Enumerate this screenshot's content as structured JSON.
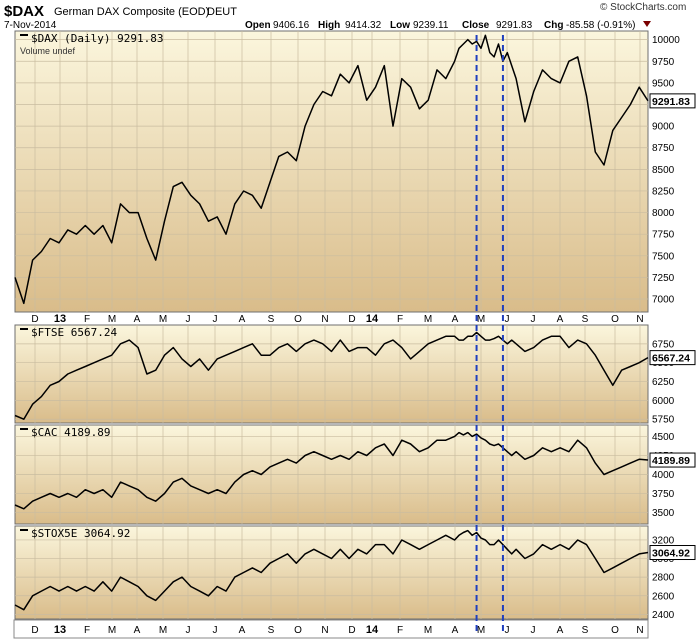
{
  "header": {
    "symbol": "$DAX",
    "description": "German DAX Composite (EOD)",
    "exchange": "DEUT",
    "date": "7-Nov-2014",
    "open_label": "Open",
    "open": "9406.16",
    "high_label": "High",
    "high": "9414.32",
    "low_label": "Low",
    "low": "9239.11",
    "close_label": "Close",
    "close": "9291.83",
    "chg_label": "Chg",
    "chg": "-85.58 (-0.91%)",
    "watermark": "© StockCharts.com"
  },
  "colors": {
    "price_line": "#000000",
    "marker_line": "#1f3fbf",
    "grid": "#c9bca0",
    "panel_top": "#fbf6dd",
    "panel_bottom": "#d9bc8a",
    "chg_negative": "#7a0000"
  },
  "time_axis": {
    "labels": [
      "D",
      "13",
      "F",
      "M",
      "A",
      "M",
      "J",
      "J",
      "A",
      "S",
      "O",
      "N",
      "D",
      "14",
      "F",
      "M",
      "A",
      "M",
      "J",
      "J",
      "A",
      "S",
      "O",
      "N"
    ],
    "bold_labels": [
      "13",
      "14"
    ]
  },
  "markers": {
    "style": "dashed",
    "x": [
      210,
      222
    ]
  },
  "chart_data": [
    {
      "type": "line",
      "title": "$DAX (Daily) 9291.83",
      "subtitle": "Volume undef",
      "ylim": [
        6850,
        10100
      ],
      "yticks": [
        7000,
        7250,
        7500,
        7750,
        8000,
        8250,
        8500,
        8750,
        9000,
        9250,
        9500,
        9750,
        10000
      ],
      "last_value": "9291.83",
      "x": [
        0,
        4,
        8,
        12,
        16,
        20,
        24,
        28,
        32,
        36,
        40,
        44,
        48,
        52,
        56,
        60,
        64,
        68,
        72,
        76,
        80,
        84,
        88,
        92,
        96,
        100,
        104,
        108,
        112,
        116,
        120,
        124,
        128,
        132,
        136,
        140,
        144,
        148,
        152,
        156,
        160,
        164,
        168,
        172,
        176,
        180,
        184,
        188,
        192,
        196,
        200,
        202,
        204,
        206,
        208,
        210,
        212,
        214,
        216,
        218,
        220,
        222,
        224,
        226,
        228,
        232,
        236,
        240,
        244,
        248,
        252,
        256,
        260,
        264,
        268,
        272,
        276,
        280,
        284,
        288
      ],
      "values": [
        7250,
        6950,
        7450,
        7550,
        7700,
        7650,
        7800,
        7750,
        7850,
        7750,
        7850,
        7650,
        8100,
        8000,
        8000,
        7700,
        7450,
        7900,
        8300,
        8350,
        8200,
        8100,
        7900,
        7950,
        7750,
        8100,
        8250,
        8200,
        8050,
        8350,
        8650,
        8700,
        8600,
        9000,
        9250,
        9400,
        9350,
        9600,
        9500,
        9700,
        9300,
        9450,
        9700,
        9000,
        9550,
        9450,
        9200,
        9300,
        9650,
        9550,
        9750,
        9900,
        9950,
        10000,
        9950,
        9980,
        9900,
        10050,
        9850,
        9800,
        9950,
        9750,
        9850,
        9700,
        9550,
        9050,
        9400,
        9650,
        9550,
        9500,
        9750,
        9800,
        9350,
        8700,
        8550,
        8950,
        9100,
        9250,
        9450,
        9291.83
      ]
    },
    {
      "type": "line",
      "title": "$FTSE 6567.24",
      "ylim": [
        5700,
        7000
      ],
      "yticks": [
        5750,
        6000,
        6250,
        6500,
        6750
      ],
      "last_value": "6567.24",
      "x": [
        0,
        4,
        8,
        12,
        16,
        20,
        24,
        28,
        32,
        36,
        40,
        44,
        48,
        52,
        56,
        60,
        64,
        68,
        72,
        76,
        80,
        84,
        88,
        92,
        96,
        100,
        104,
        108,
        112,
        116,
        120,
        124,
        128,
        132,
        136,
        140,
        144,
        148,
        152,
        156,
        160,
        164,
        168,
        172,
        176,
        180,
        184,
        188,
        192,
        196,
        200,
        202,
        204,
        206,
        208,
        210,
        212,
        214,
        216,
        218,
        220,
        222,
        224,
        226,
        228,
        232,
        236,
        240,
        244,
        248,
        252,
        256,
        260,
        264,
        268,
        272,
        276,
        280,
        284,
        288
      ],
      "values": [
        5800,
        5750,
        5950,
        6050,
        6200,
        6250,
        6350,
        6400,
        6450,
        6500,
        6550,
        6600,
        6750,
        6800,
        6700,
        6350,
        6400,
        6600,
        6700,
        6550,
        6450,
        6550,
        6400,
        6550,
        6600,
        6650,
        6700,
        6750,
        6600,
        6600,
        6700,
        6750,
        6650,
        6750,
        6800,
        6750,
        6650,
        6800,
        6650,
        6700,
        6700,
        6600,
        6750,
        6800,
        6700,
        6550,
        6650,
        6750,
        6800,
        6850,
        6850,
        6800,
        6800,
        6850,
        6850,
        6900,
        6850,
        6800,
        6800,
        6820,
        6850,
        6800,
        6750,
        6800,
        6750,
        6650,
        6700,
        6800,
        6850,
        6850,
        6700,
        6800,
        6750,
        6600,
        6400,
        6200,
        6400,
        6450,
        6500,
        6567.24
      ]
    },
    {
      "type": "line",
      "title": "$CAC 4189.89",
      "ylim": [
        3350,
        4650
      ],
      "yticks": [
        3500,
        3750,
        4000,
        4250,
        4500
      ],
      "last_value": "4189.89",
      "x": [
        0,
        4,
        8,
        12,
        16,
        20,
        24,
        28,
        32,
        36,
        40,
        44,
        48,
        52,
        56,
        60,
        64,
        68,
        72,
        76,
        80,
        84,
        88,
        92,
        96,
        100,
        104,
        108,
        112,
        116,
        120,
        124,
        128,
        132,
        136,
        140,
        144,
        148,
        152,
        156,
        160,
        164,
        168,
        172,
        176,
        180,
        184,
        188,
        192,
        196,
        200,
        202,
        204,
        206,
        208,
        210,
        212,
        214,
        216,
        218,
        220,
        222,
        224,
        226,
        228,
        232,
        236,
        240,
        244,
        248,
        252,
        256,
        260,
        264,
        268,
        272,
        276,
        280,
        284,
        288
      ],
      "values": [
        3600,
        3550,
        3650,
        3700,
        3750,
        3700,
        3750,
        3700,
        3800,
        3750,
        3800,
        3700,
        3900,
        3850,
        3800,
        3700,
        3650,
        3750,
        3900,
        3950,
        3850,
        3800,
        3750,
        3800,
        3750,
        3900,
        4000,
        4050,
        4000,
        4100,
        4150,
        4200,
        4150,
        4250,
        4300,
        4250,
        4200,
        4250,
        4200,
        4300,
        4250,
        4350,
        4400,
        4250,
        4450,
        4400,
        4300,
        4350,
        4450,
        4450,
        4500,
        4550,
        4520,
        4550,
        4500,
        4530,
        4480,
        4450,
        4400,
        4380,
        4400,
        4350,
        4300,
        4250,
        4300,
        4200,
        4250,
        4350,
        4300,
        4350,
        4300,
        4450,
        4350,
        4150,
        4000,
        4050,
        4100,
        4150,
        4200,
        4189.89
      ]
    },
    {
      "type": "line",
      "title": "$STOX5E 3064.92",
      "ylim": [
        2350,
        3350
      ],
      "yticks": [
        2400,
        2600,
        2800,
        3000,
        3200
      ],
      "last_value": "3064.92",
      "x": [
        0,
        4,
        8,
        12,
        16,
        20,
        24,
        28,
        32,
        36,
        40,
        44,
        48,
        52,
        56,
        60,
        64,
        68,
        72,
        76,
        80,
        84,
        88,
        92,
        96,
        100,
        104,
        108,
        112,
        116,
        120,
        124,
        128,
        132,
        136,
        140,
        144,
        148,
        152,
        156,
        160,
        164,
        168,
        172,
        176,
        180,
        184,
        188,
        192,
        196,
        200,
        202,
        204,
        206,
        208,
        210,
        212,
        214,
        216,
        218,
        220,
        222,
        224,
        226,
        228,
        232,
        236,
        240,
        244,
        248,
        252,
        256,
        260,
        264,
        268,
        272,
        276,
        280,
        284,
        288
      ],
      "values": [
        2500,
        2450,
        2600,
        2650,
        2700,
        2650,
        2700,
        2650,
        2700,
        2650,
        2750,
        2650,
        2800,
        2750,
        2700,
        2600,
        2550,
        2650,
        2750,
        2800,
        2700,
        2650,
        2600,
        2700,
        2650,
        2800,
        2850,
        2900,
        2850,
        2950,
        3000,
        3050,
        2950,
        3050,
        3100,
        3050,
        3000,
        3100,
        3000,
        3100,
        3050,
        3150,
        3150,
        3050,
        3200,
        3150,
        3100,
        3150,
        3200,
        3250,
        3200,
        3250,
        3280,
        3300,
        3250,
        3280,
        3220,
        3200,
        3150,
        3150,
        3200,
        3150,
        3100,
        3050,
        3100,
        3000,
        3050,
        3150,
        3100,
        3150,
        3100,
        3200,
        3150,
        3000,
        2850,
        2900,
        2950,
        3000,
        3050,
        3064.92
      ]
    }
  ]
}
